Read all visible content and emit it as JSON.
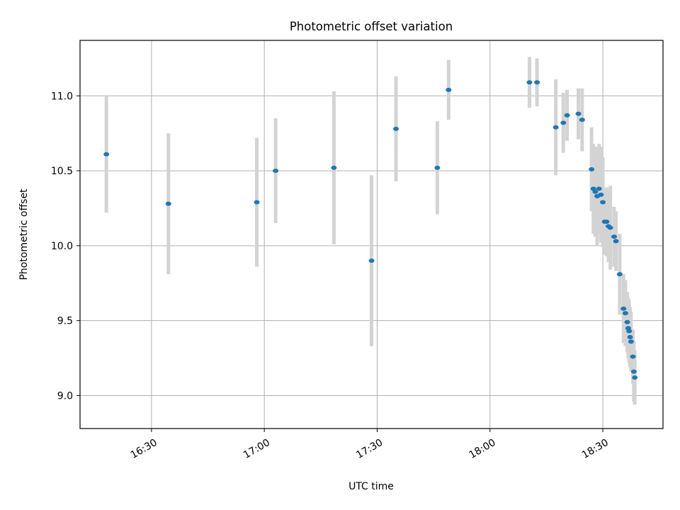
{
  "chart_data": {
    "type": "scatter",
    "title": "Photometric offset variation",
    "xlabel": "UTC time",
    "ylabel": "Photometric offset",
    "x_axis_kind": "time",
    "xlim": [
      "16:11",
      "18:46"
    ],
    "ylim": [
      8.78,
      11.37
    ],
    "x_ticks": [
      "16:30",
      "17:00",
      "17:30",
      "18:00",
      "18:30"
    ],
    "y_ticks": [
      9.0,
      9.5,
      10.0,
      10.5,
      11.0
    ],
    "y_tick_labels": [
      "9.0",
      "9.5",
      "10.0",
      "10.5",
      "11.0"
    ],
    "grid": true,
    "marker_color": "#1f77b4",
    "errorbar_color": "#d3d3d3",
    "points": [
      {
        "t": "16:18:00",
        "y": 10.61,
        "yerr": 0.39
      },
      {
        "t": "16:34:30",
        "y": 10.28,
        "yerr": 0.47
      },
      {
        "t": "16:58:00",
        "y": 10.29,
        "yerr": 0.43
      },
      {
        "t": "17:03:00",
        "y": 10.5,
        "yerr": 0.35
      },
      {
        "t": "17:18:30",
        "y": 10.52,
        "yerr": 0.51
      },
      {
        "t": "17:28:30",
        "y": 9.9,
        "yerr": 0.57
      },
      {
        "t": "17:35:00",
        "y": 10.78,
        "yerr": 0.35
      },
      {
        "t": "17:46:00",
        "y": 10.52,
        "yerr": 0.31
      },
      {
        "t": "17:49:00",
        "y": 11.04,
        "yerr": 0.2
      },
      {
        "t": "18:10:30",
        "y": 11.09,
        "yerr": 0.17
      },
      {
        "t": "18:12:30",
        "y": 11.09,
        "yerr": 0.16
      },
      {
        "t": "18:17:30",
        "y": 10.79,
        "yerr": 0.32
      },
      {
        "t": "18:19:30",
        "y": 10.82,
        "yerr": 0.2
      },
      {
        "t": "18:20:30",
        "y": 10.87,
        "yerr": 0.17
      },
      {
        "t": "18:23:30",
        "y": 10.88,
        "yerr": 0.17
      },
      {
        "t": "18:24:30",
        "y": 10.84,
        "yerr": 0.21
      },
      {
        "t": "18:27:00",
        "y": 10.51,
        "yerr": 0.28
      },
      {
        "t": "18:27:30",
        "y": 10.38,
        "yerr": 0.3
      },
      {
        "t": "18:28:00",
        "y": 10.36,
        "yerr": 0.3
      },
      {
        "t": "18:28:30",
        "y": 10.33,
        "yerr": 0.33
      },
      {
        "t": "18:29:00",
        "y": 10.38,
        "yerr": 0.3
      },
      {
        "t": "18:29:30",
        "y": 10.34,
        "yerr": 0.32
      },
      {
        "t": "18:30:00",
        "y": 10.29,
        "yerr": 0.3
      },
      {
        "t": "18:30:30",
        "y": 10.16,
        "yerr": 0.22
      },
      {
        "t": "18:31:00",
        "y": 10.16,
        "yerr": 0.23
      },
      {
        "t": "18:31:30",
        "y": 10.13,
        "yerr": 0.24
      },
      {
        "t": "18:32:00",
        "y": 10.12,
        "yerr": 0.28
      },
      {
        "t": "18:33:00",
        "y": 10.06,
        "yerr": 0.2
      },
      {
        "t": "18:33:30",
        "y": 10.03,
        "yerr": 0.2
      },
      {
        "t": "18:34:30",
        "y": 9.81,
        "yerr": 0.27
      },
      {
        "t": "18:35:30",
        "y": 9.58,
        "yerr": 0.23
      },
      {
        "t": "18:36:00",
        "y": 9.55,
        "yerr": 0.22
      },
      {
        "t": "18:36:30",
        "y": 9.49,
        "yerr": 0.2
      },
      {
        "t": "18:36:45",
        "y": 9.45,
        "yerr": 0.2
      },
      {
        "t": "18:37:00",
        "y": 9.43,
        "yerr": 0.21
      },
      {
        "t": "18:37:15",
        "y": 9.39,
        "yerr": 0.2
      },
      {
        "t": "18:37:30",
        "y": 9.36,
        "yerr": 0.2
      },
      {
        "t": "18:38:00",
        "y": 9.26,
        "yerr": 0.18
      },
      {
        "t": "18:38:15",
        "y": 9.16,
        "yerr": 0.2
      },
      {
        "t": "18:38:30",
        "y": 9.12,
        "yerr": 0.18
      }
    ]
  }
}
